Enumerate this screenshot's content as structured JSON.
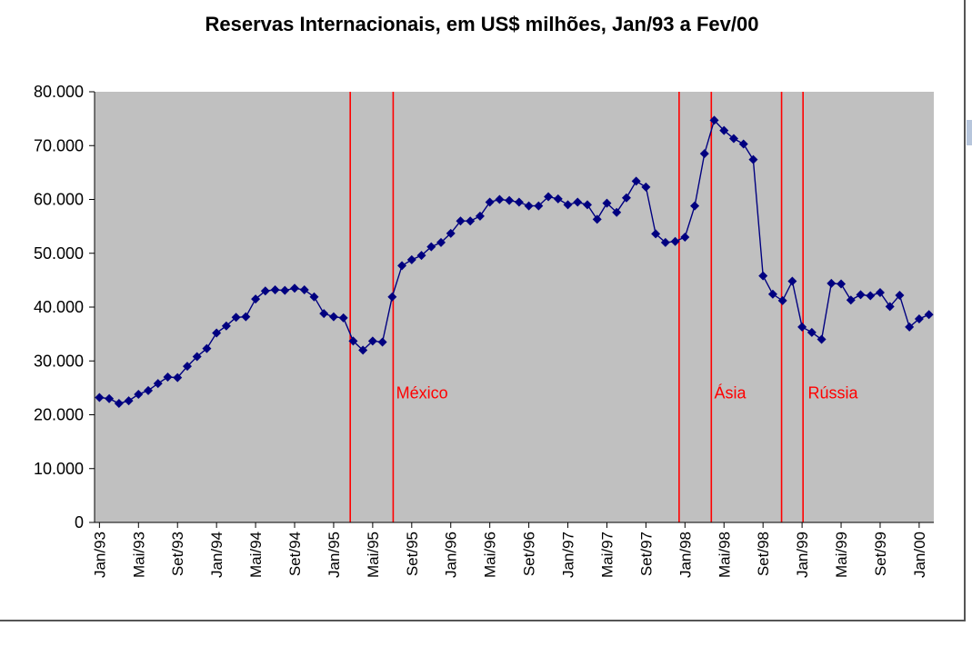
{
  "chart_data": {
    "type": "line",
    "title": "Reservas Internacionais, em US$ milhões, Jan/93 a Fev/00",
    "xlabel": "",
    "ylabel": "",
    "ylim": [
      0,
      80000
    ],
    "y_ticks": [
      0,
      10000,
      20000,
      30000,
      40000,
      50000,
      60000,
      70000,
      80000
    ],
    "y_tick_labels": [
      "0",
      "10.000",
      "20.000",
      "30.000",
      "40.000",
      "50.000",
      "60.000",
      "70.000",
      "80.000"
    ],
    "x_tick_labels": [
      "Jan/93",
      "Mai/93",
      "Set/93",
      "Jan/94",
      "Mai/94",
      "Set/94",
      "Jan/95",
      "Mai/95",
      "Set/95",
      "Jan/96",
      "Mai/96",
      "Set/96",
      "Jan/97",
      "Mai/97",
      "Set/97",
      "Jan/98",
      "Mai/98",
      "Set/98",
      "Jan/99",
      "Mai/99",
      "Set/99",
      "Jan/00"
    ],
    "grid": false,
    "plot_background": "#c0c0c0",
    "series": [
      {
        "color": "#000080",
        "marker": "diamond",
        "values": [
          23200,
          23000,
          22100,
          22600,
          23800,
          24500,
          25800,
          27000,
          26900,
          29000,
          30800,
          32300,
          35200,
          36500,
          38100,
          38200,
          41500,
          43000,
          43200,
          43100,
          43500,
          43200,
          41900,
          38800,
          38200,
          38000,
          33700,
          32000,
          33700,
          33500,
          41900,
          47700,
          48800,
          49600,
          51200,
          52000,
          53700,
          56000,
          56000,
          56900,
          59500,
          60000,
          59800,
          59500,
          58800,
          58800,
          60500,
          60100,
          59000,
          59500,
          59000,
          56300,
          59300,
          57600,
          60300,
          63400,
          62300,
          53600,
          52000,
          52200,
          53000,
          58800,
          68500,
          74700,
          72800,
          71300,
          70300,
          67400,
          45800,
          42400,
          41200,
          44800,
          36300,
          35300,
          34000,
          44400,
          44300,
          41300,
          42300,
          42100,
          42700,
          40100,
          42200,
          36300,
          37800,
          38600
        ]
      }
    ],
    "event_lines": [
      {
        "index": 25.7,
        "color": "#ff0000"
      },
      {
        "index": 30.1,
        "color": "#ff0000"
      },
      {
        "index": 59.4,
        "color": "#ff0000"
      },
      {
        "index": 62.7,
        "color": "#ff0000"
      },
      {
        "index": 69.9,
        "color": "#ff0000"
      },
      {
        "index": 72.1,
        "color": "#ff0000"
      }
    ],
    "annotations": [
      {
        "text": "México",
        "index": 30.4,
        "y": 23000,
        "color": "#ff0000"
      },
      {
        "text": "Ásia",
        "index": 63.0,
        "y": 23000,
        "color": "#ff0000"
      },
      {
        "text": "Rússia",
        "index": 72.6,
        "y": 23000,
        "color": "#ff0000"
      }
    ]
  }
}
